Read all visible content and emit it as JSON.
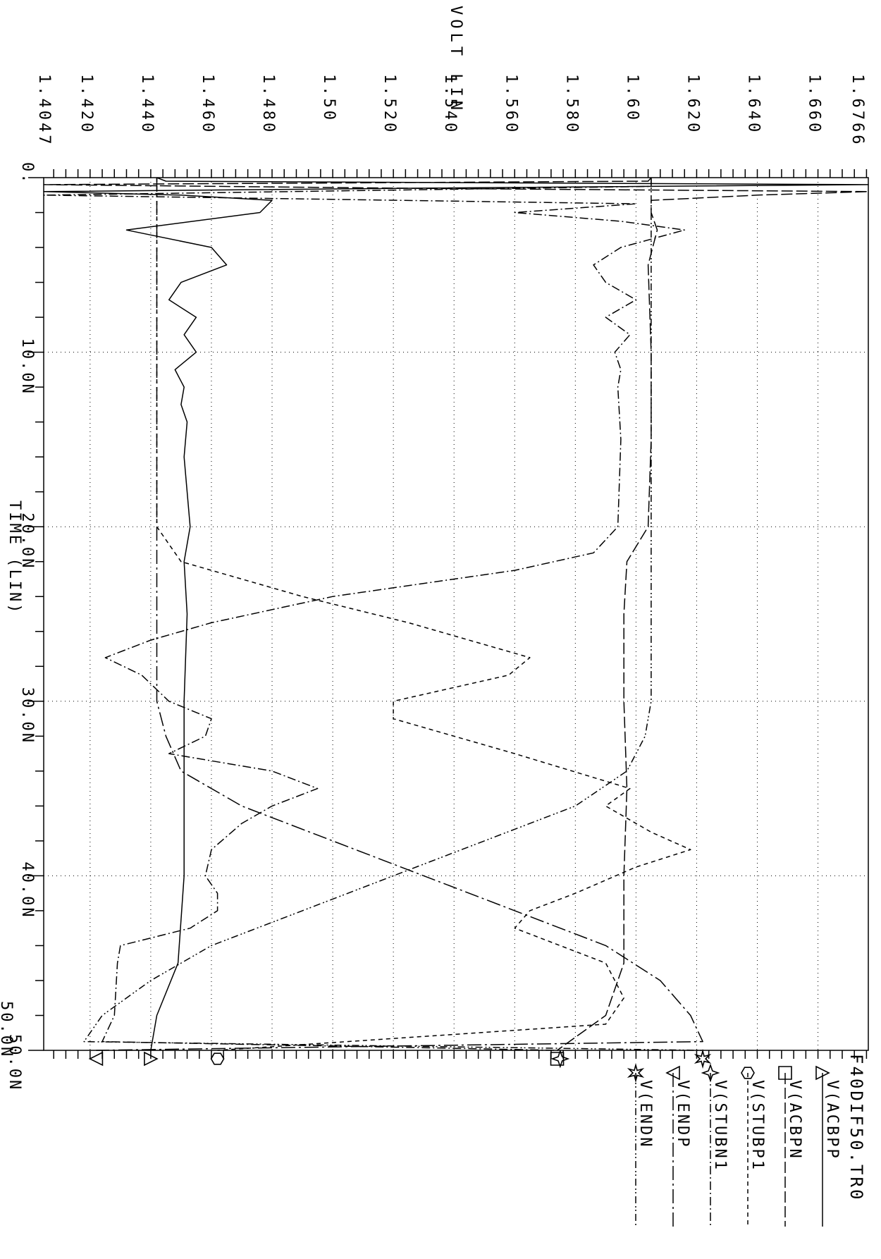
{
  "chart_data": {
    "type": "line",
    "orientation": "rotated-90-clockwise",
    "title": "F40DIF50.TR0",
    "xlabel": "TIME (LIN)",
    "ylabel": "VOLT LIN",
    "xlim": [
      0,
      50.0
    ],
    "ylim": [
      1.4047,
      1.6766
    ],
    "x_ticks": [
      {
        "v": 0,
        "label": "0."
      },
      {
        "v": 10,
        "label": "10.0N"
      },
      {
        "v": 20,
        "label": "20.0N"
      },
      {
        "v": 30,
        "label": "30.0N"
      },
      {
        "v": 40,
        "label": "40.0N"
      },
      {
        "v": 50,
        "label": "50.0N"
      }
    ],
    "extra_x_label": "50.0N",
    "y_ticks": [
      {
        "v": 1.4047,
        "label": "1.4047"
      },
      {
        "v": 1.42,
        "label": "1.420"
      },
      {
        "v": 1.44,
        "label": "1.440"
      },
      {
        "v": 1.46,
        "label": "1.460"
      },
      {
        "v": 1.48,
        "label": "1.480"
      },
      {
        "v": 1.5,
        "label": "1.50"
      },
      {
        "v": 1.52,
        "label": "1.520"
      },
      {
        "v": 1.54,
        "label": "1.540"
      },
      {
        "v": 1.56,
        "label": "1.560"
      },
      {
        "v": 1.58,
        "label": "1.580"
      },
      {
        "v": 1.6,
        "label": "1.60"
      },
      {
        "v": 1.62,
        "label": "1.620"
      },
      {
        "v": 1.64,
        "label": "1.640"
      },
      {
        "v": 1.66,
        "label": "1.660"
      },
      {
        "v": 1.6766,
        "label": "1.6766"
      }
    ],
    "grid": true,
    "legend_position": "bottom",
    "series": [
      {
        "name": "V(ACBPP",
        "marker": "triangle",
        "dash": "solid",
        "points": [
          [
            0,
            1.442
          ],
          [
            0.2,
            1.445
          ],
          [
            0.4,
            1.6766
          ],
          [
            0.6,
            1.53
          ],
          [
            0.8,
            1.4047
          ],
          [
            1.0,
            1.45
          ],
          [
            1.3,
            1.48
          ],
          [
            2.0,
            1.476
          ],
          [
            3.0,
            1.432
          ],
          [
            4.0,
            1.46
          ],
          [
            5.0,
            1.465
          ],
          [
            6.0,
            1.45
          ],
          [
            7.0,
            1.446
          ],
          [
            8.0,
            1.455
          ],
          [
            9.0,
            1.451
          ],
          [
            10.0,
            1.455
          ],
          [
            11.0,
            1.448
          ],
          [
            12.0,
            1.451
          ],
          [
            13.0,
            1.45
          ],
          [
            14.0,
            1.452
          ],
          [
            16.0,
            1.451
          ],
          [
            18.0,
            1.452
          ],
          [
            20.0,
            1.453
          ],
          [
            22.0,
            1.451
          ],
          [
            25.0,
            1.452
          ],
          [
            30.0,
            1.451
          ],
          [
            35.0,
            1.451
          ],
          [
            40.0,
            1.451
          ],
          [
            45.0,
            1.449
          ],
          [
            48.0,
            1.442
          ],
          [
            50.0,
            1.44
          ]
        ]
      },
      {
        "name": "V(ACBPN",
        "marker": "square",
        "dash": "long-dash",
        "points": [
          [
            0,
            1.605
          ],
          [
            0.2,
            1.604
          ],
          [
            0.4,
            1.4047
          ],
          [
            0.6,
            1.52
          ],
          [
            0.8,
            1.6766
          ],
          [
            1.0,
            1.64
          ],
          [
            1.3,
            1.605
          ],
          [
            2.0,
            1.605
          ],
          [
            3.0,
            1.607
          ],
          [
            5.0,
            1.604
          ],
          [
            10.0,
            1.605
          ],
          [
            15.0,
            1.605
          ],
          [
            20.0,
            1.604
          ],
          [
            22.0,
            1.597
          ],
          [
            25.0,
            1.596
          ],
          [
            30.0,
            1.596
          ],
          [
            35.0,
            1.597
          ],
          [
            40.0,
            1.596
          ],
          [
            45.0,
            1.596
          ],
          [
            48.0,
            1.59
          ],
          [
            50.0,
            1.574
          ]
        ]
      },
      {
        "name": "V(STUBP1",
        "marker": "hexagon",
        "dash": "short-dash",
        "points": [
          [
            0,
            1.442
          ],
          [
            5.0,
            1.442
          ],
          [
            10.0,
            1.442
          ],
          [
            15.0,
            1.442
          ],
          [
            20.0,
            1.442
          ],
          [
            22.0,
            1.45
          ],
          [
            24.0,
            1.49
          ],
          [
            25.5,
            1.525
          ],
          [
            27.5,
            1.565
          ],
          [
            28.5,
            1.558
          ],
          [
            30.0,
            1.52
          ],
          [
            31.0,
            1.52
          ],
          [
            33.0,
            1.56
          ],
          [
            35.0,
            1.598
          ],
          [
            36.0,
            1.59
          ],
          [
            37.5,
            1.605
          ],
          [
            38.5,
            1.618
          ],
          [
            39.5,
            1.6
          ],
          [
            41.0,
            1.58
          ],
          [
            42.0,
            1.565
          ],
          [
            43.0,
            1.56
          ],
          [
            45.0,
            1.59
          ],
          [
            47.0,
            1.596
          ],
          [
            48.5,
            1.59
          ],
          [
            50.0,
            1.462
          ]
        ]
      },
      {
        "name": "V(STUBN1",
        "marker": "star",
        "dash": "dash-dot",
        "points": [
          [
            0,
            1.605
          ],
          [
            0.5,
            1.605
          ],
          [
            1.0,
            1.4047
          ],
          [
            1.5,
            1.6
          ],
          [
            2.0,
            1.56
          ],
          [
            2.5,
            1.595
          ],
          [
            3.0,
            1.616
          ],
          [
            4.0,
            1.595
          ],
          [
            5.0,
            1.586
          ],
          [
            6.0,
            1.59
          ],
          [
            7.0,
            1.6
          ],
          [
            8.0,
            1.59
          ],
          [
            9.0,
            1.598
          ],
          [
            10.0,
            1.593
          ],
          [
            11.0,
            1.595
          ],
          [
            12.0,
            1.594
          ],
          [
            15.0,
            1.595
          ],
          [
            20.0,
            1.594
          ],
          [
            21.5,
            1.586
          ],
          [
            22.5,
            1.56
          ],
          [
            24.0,
            1.5
          ],
          [
            25.5,
            1.46
          ],
          [
            26.5,
            1.44
          ],
          [
            27.5,
            1.425
          ],
          [
            28.5,
            1.437
          ],
          [
            30.0,
            1.446
          ],
          [
            31.0,
            1.46
          ],
          [
            32.0,
            1.458
          ],
          [
            33.0,
            1.446
          ],
          [
            34.0,
            1.48
          ],
          [
            35.0,
            1.495
          ],
          [
            36.0,
            1.48
          ],
          [
            37.0,
            1.47
          ],
          [
            38.5,
            1.46
          ],
          [
            40.0,
            1.458
          ],
          [
            41.0,
            1.462
          ],
          [
            42.0,
            1.462
          ],
          [
            43.0,
            1.453
          ],
          [
            44.0,
            1.43
          ],
          [
            45.0,
            1.429
          ],
          [
            48.0,
            1.428
          ],
          [
            49.5,
            1.424
          ],
          [
            50.0,
            1.575
          ]
        ]
      },
      {
        "name": "V(ENDP",
        "marker": "triangle-left",
        "dash": "long-dash-dot",
        "points": [
          [
            0,
            1.442
          ],
          [
            5.0,
            1.442
          ],
          [
            10.0,
            1.442
          ],
          [
            15.0,
            1.442
          ],
          [
            20.0,
            1.442
          ],
          [
            25.0,
            1.442
          ],
          [
            30.0,
            1.442
          ],
          [
            32.0,
            1.445
          ],
          [
            34.0,
            1.45
          ],
          [
            36.0,
            1.47
          ],
          [
            38.0,
            1.5
          ],
          [
            40.0,
            1.53
          ],
          [
            42.0,
            1.56
          ],
          [
            44.0,
            1.59
          ],
          [
            46.0,
            1.608
          ],
          [
            48.0,
            1.618
          ],
          [
            49.5,
            1.622
          ],
          [
            50.0,
            1.422
          ]
        ]
      },
      {
        "name": "V(ENDN",
        "marker": "star-6",
        "dash": "dash-dot-dot",
        "points": [
          [
            0,
            1.605
          ],
          [
            5.0,
            1.605
          ],
          [
            10.0,
            1.605
          ],
          [
            15.0,
            1.605
          ],
          [
            20.0,
            1.605
          ],
          [
            25.0,
            1.605
          ],
          [
            30.0,
            1.605
          ],
          [
            32.0,
            1.603
          ],
          [
            34.0,
            1.597
          ],
          [
            36.0,
            1.58
          ],
          [
            38.0,
            1.55
          ],
          [
            40.0,
            1.52
          ],
          [
            42.0,
            1.49
          ],
          [
            44.0,
            1.46
          ],
          [
            46.0,
            1.44
          ],
          [
            48.0,
            1.424
          ],
          [
            49.5,
            1.418
          ],
          [
            50.0,
            1.622
          ]
        ]
      }
    ]
  }
}
